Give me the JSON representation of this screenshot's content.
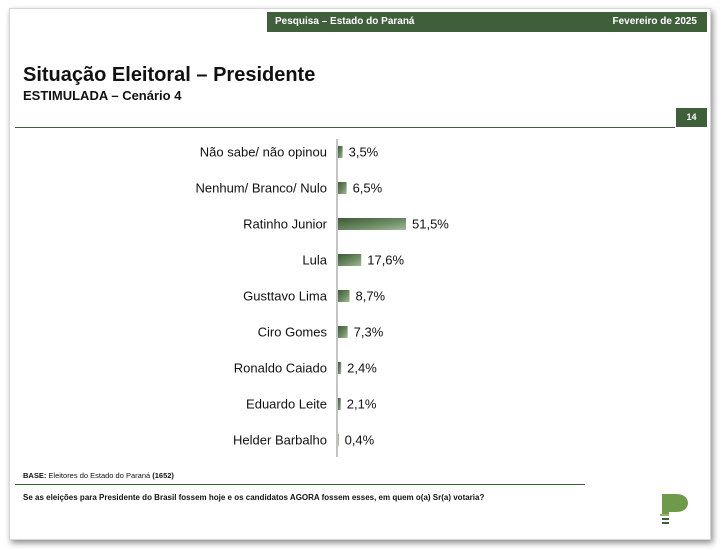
{
  "header": {
    "survey": "Pesquisa – Estado do Paraná",
    "date": "Fevereiro de 2025"
  },
  "title": "Situação Eleitoral – Presidente",
  "subtitle": "ESTIMULADA – Cenário 4",
  "page_number": "14",
  "footer": {
    "base_label": "BASE:",
    "base_text": " Eleitores do Estado do Paraná ",
    "base_count": "(1652)",
    "question": "Se as eleições para Presidente do Brasil fossem hoje e os candidatos AGORA fossem esses, em quem o(a) Sr(a) votaria?"
  },
  "colors": {
    "brand": "#3f5f3b",
    "bar": "#4f7048",
    "bar_light": "#a3b89b"
  },
  "chart_data": {
    "type": "bar",
    "orientation": "horizontal",
    "categories": [
      "Não sabe/ não opinou",
      "Nenhum/ Branco/ Nulo",
      "Ratinho Junior",
      "Lula",
      "Gusttavo Lima",
      "Ciro Gomes",
      "Ronaldo Caiado",
      "Eduardo Leite",
      "Helder Barbalho"
    ],
    "values": [
      3.5,
      6.5,
      51.5,
      17.6,
      8.7,
      7.3,
      2.4,
      2.1,
      0.4
    ],
    "labels": [
      "3,5%",
      "6,5%",
      "51,5%",
      "17,6%",
      "8,7%",
      "7,3%",
      "2,4%",
      "2,1%",
      "0,4%"
    ],
    "unit": "%",
    "xlim": [
      0,
      100
    ],
    "grid": false,
    "legend": "none"
  }
}
